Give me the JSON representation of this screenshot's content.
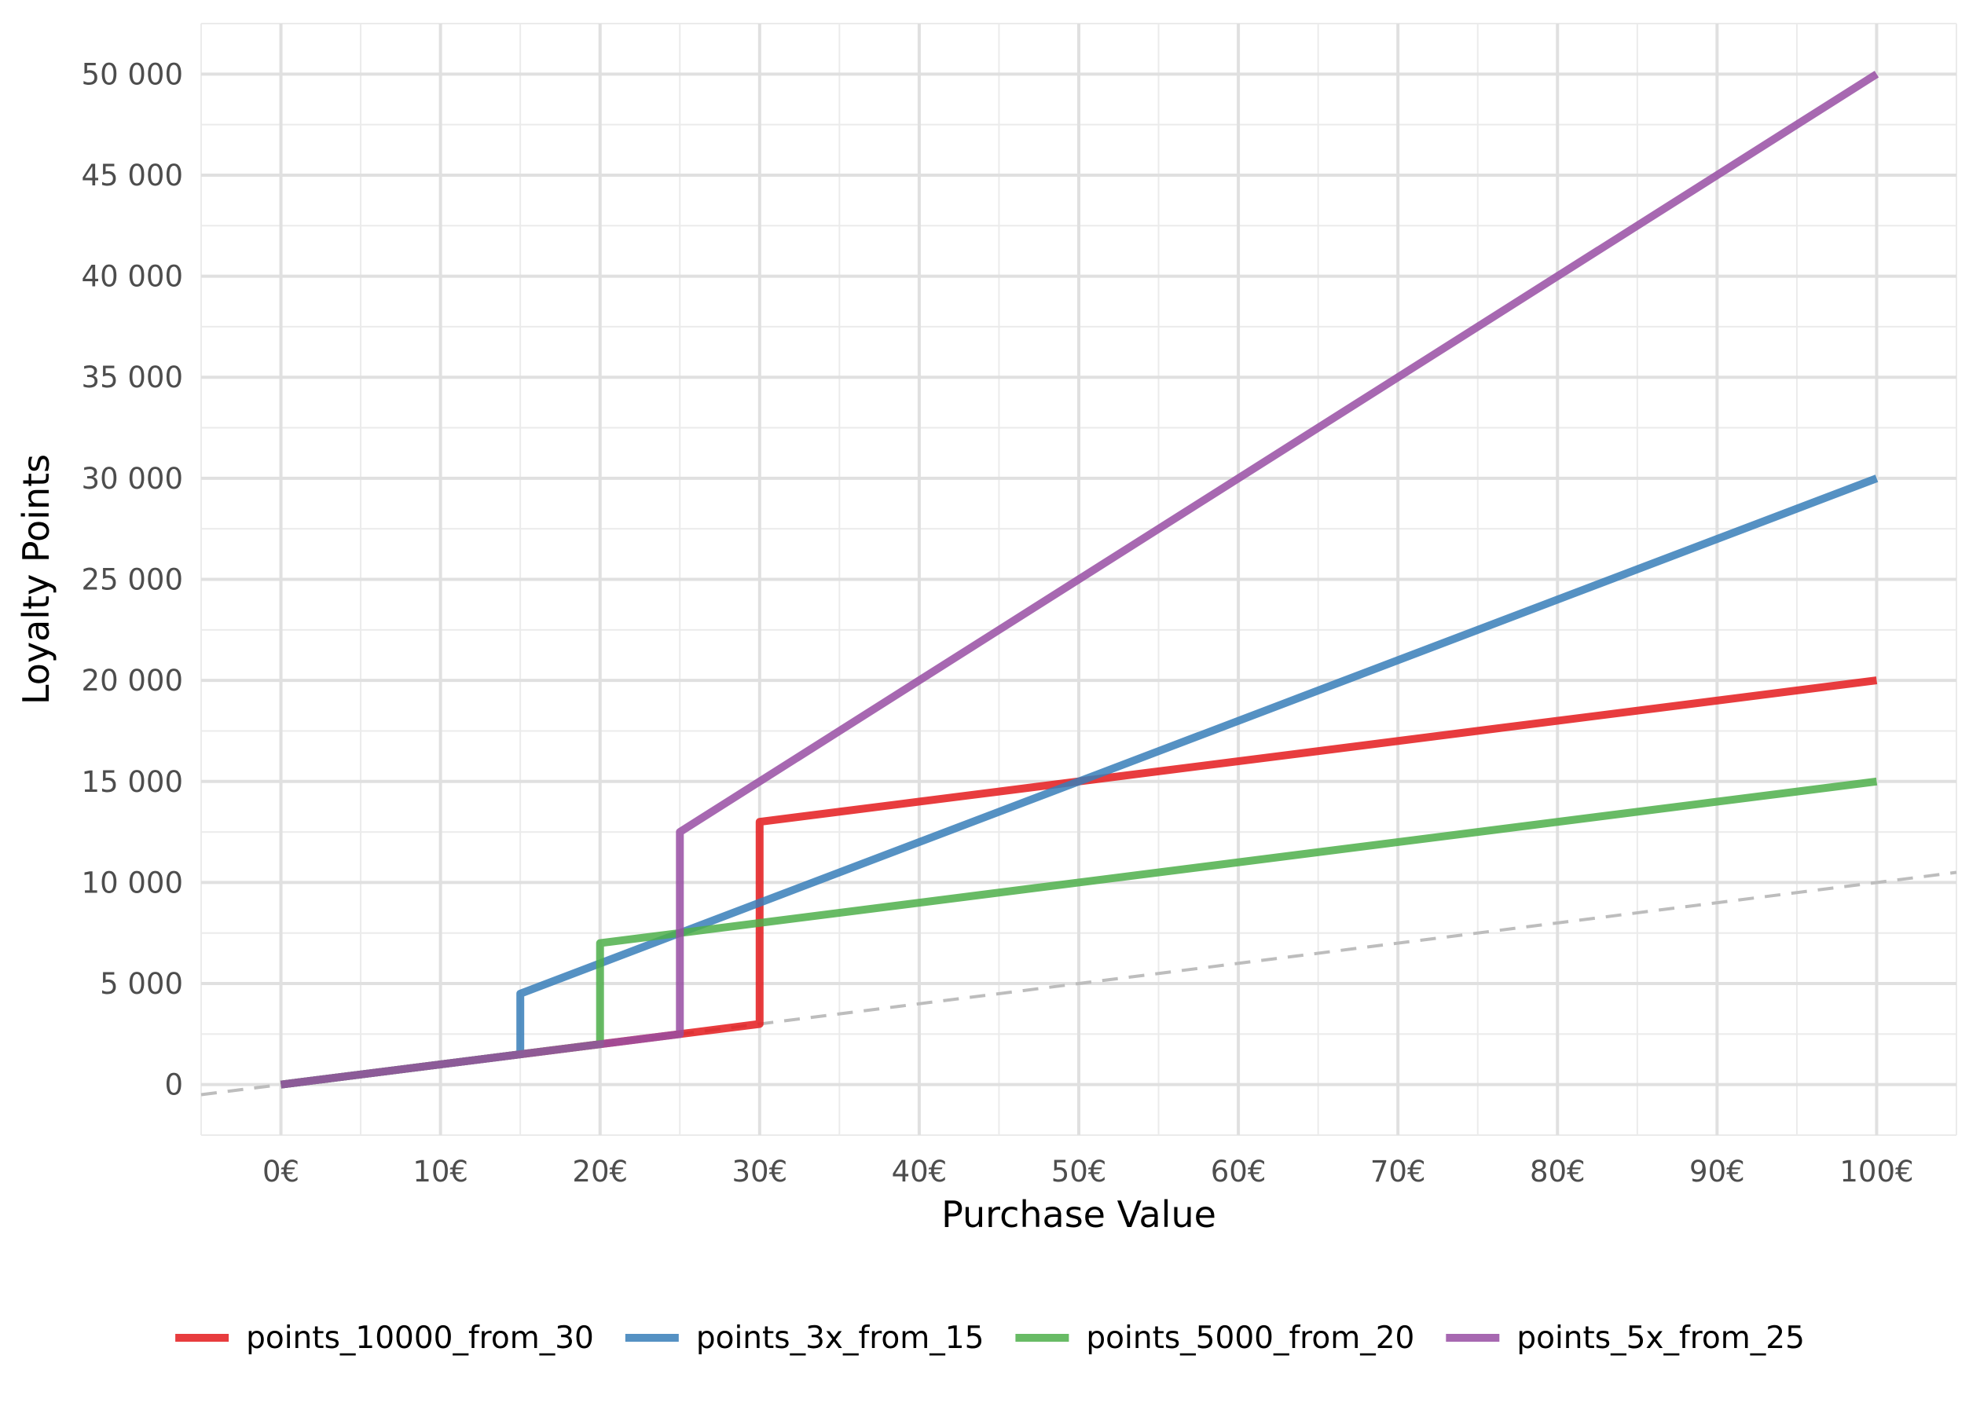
{
  "chart_data": {
    "type": "line",
    "title": "",
    "xlabel": "Purchase Value",
    "ylabel": "Loyalty Points",
    "xlim": [
      -5,
      105
    ],
    "ylim": [
      -2500,
      52500
    ],
    "x_ticks": [
      0,
      10,
      20,
      30,
      40,
      50,
      60,
      70,
      80,
      90,
      100
    ],
    "x_tick_labels": [
      "0€",
      "10€",
      "20€",
      "30€",
      "40€",
      "50€",
      "60€",
      "70€",
      "80€",
      "90€",
      "100€"
    ],
    "y_ticks": [
      0,
      5000,
      10000,
      15000,
      20000,
      25000,
      30000,
      35000,
      40000,
      45000,
      50000
    ],
    "y_tick_labels": [
      "0",
      "5 000",
      "10 000",
      "15 000",
      "20 000",
      "25 000",
      "30 000",
      "35 000",
      "40 000",
      "45 000",
      "50 000"
    ],
    "grid": true,
    "legend_position": "bottom",
    "reference_line": {
      "style": "dashed",
      "color": "#bdbdbd",
      "slope": 100,
      "intercept": 0
    },
    "series": [
      {
        "name": "points_10000_from_30",
        "color": "#E41A1C",
        "points": [
          [
            0,
            0
          ],
          [
            30,
            3000
          ],
          [
            30,
            13000
          ],
          [
            100,
            20000
          ]
        ]
      },
      {
        "name": "points_3x_from_15",
        "color": "#377EB8",
        "points": [
          [
            0,
            0
          ],
          [
            15,
            1500
          ],
          [
            15,
            4500
          ],
          [
            100,
            30000
          ]
        ]
      },
      {
        "name": "points_5000_from_20",
        "color": "#4DAF4A",
        "points": [
          [
            0,
            0
          ],
          [
            20,
            2000
          ],
          [
            20,
            7000
          ],
          [
            100,
            15000
          ]
        ]
      },
      {
        "name": "points_5x_from_25",
        "color": "#984EA3",
        "points": [
          [
            0,
            0
          ],
          [
            25,
            2500
          ],
          [
            25,
            12500
          ],
          [
            100,
            50000
          ]
        ]
      }
    ]
  }
}
